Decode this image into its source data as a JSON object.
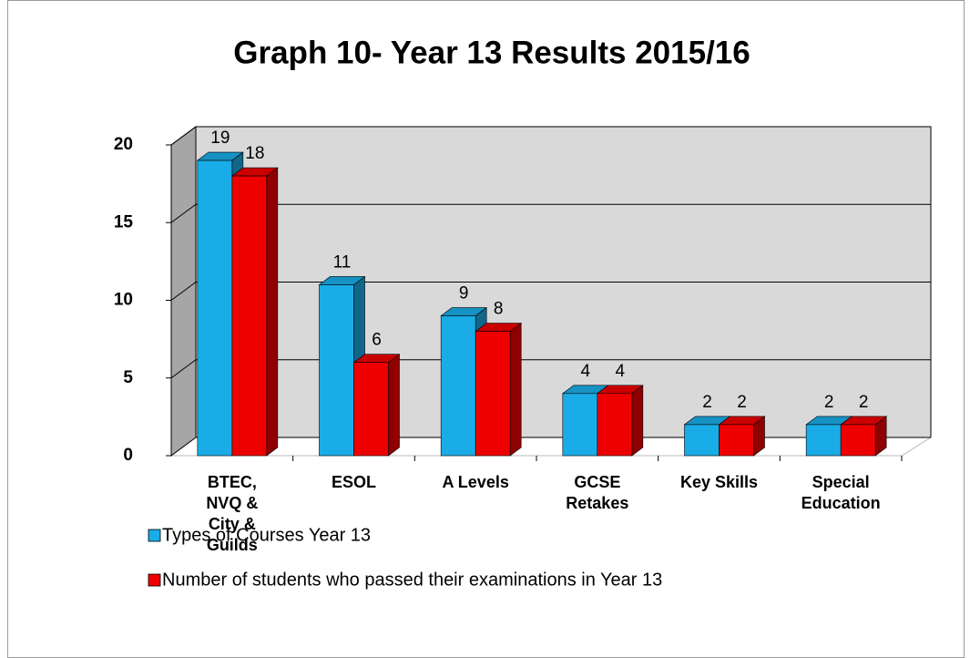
{
  "chart_data": {
    "type": "bar3d",
    "title": "Graph 10- Year 13 Results 2015/16",
    "categories": [
      "BTEC, NVQ & City & Guilds",
      "ESOL",
      "A Levels",
      "GCSE Retakes",
      "Key Skills",
      "Special Education"
    ],
    "series": [
      {
        "name": "Types of Courses Year 13",
        "color": "#1aace6",
        "values": [
          19,
          11,
          9,
          4,
          2,
          2
        ]
      },
      {
        "name": "Number of students who passed their examinations in Year 13",
        "color": "#ee0000",
        "values": [
          18,
          6,
          8,
          4,
          2,
          2
        ]
      }
    ],
    "ylim": [
      0,
      20
    ],
    "yticks": [
      0,
      5,
      10,
      15,
      20
    ],
    "grid": true,
    "legend": "bottom"
  }
}
